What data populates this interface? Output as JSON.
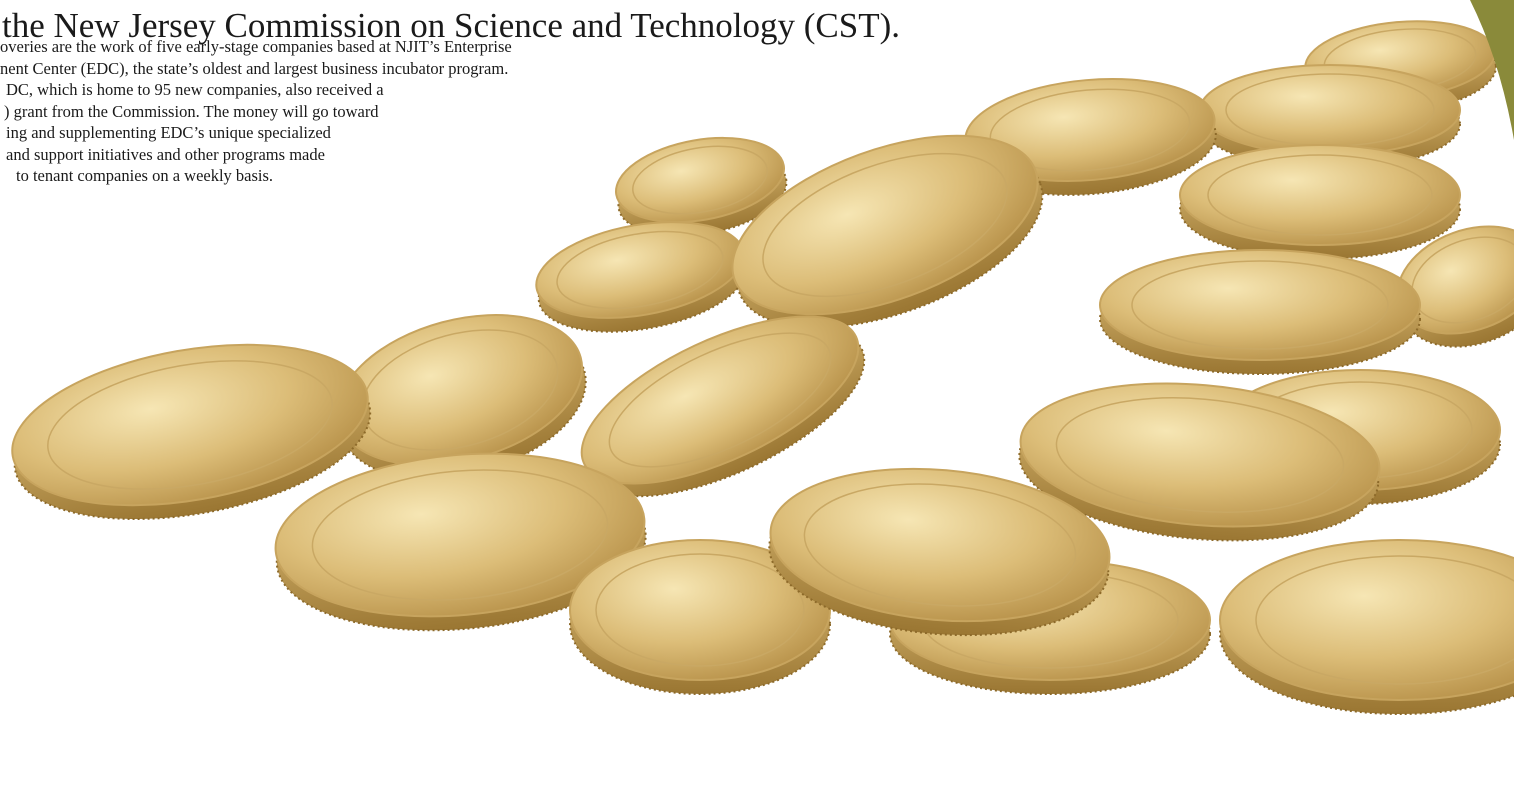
{
  "heading": "the New Jersey Commission on Science and Technology (CST).",
  "paragraph_lines": [
    "overies are the work of five early-stage companies based at NJIT’s Enterprise",
    "nent Center (EDC), the state’s oldest and largest business incubator program.",
    "DC, which is home to 95 new companies, also received a",
    ") grant from the Commission. The money will go toward",
    "ing and supplementing EDC’s unique specialized",
    "and support initiatives and other programs made",
    "to tenant companies on a weekly basis."
  ]
}
